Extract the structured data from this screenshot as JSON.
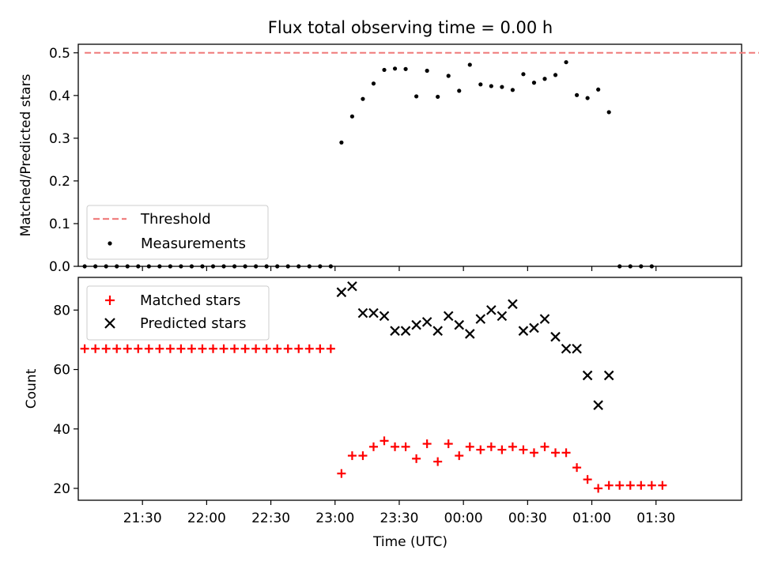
{
  "chart_data": [
    {
      "type": "scatter",
      "title": "Flux total observing time = 0.00 h",
      "xlabel": "",
      "ylabel": "Matched/Predicted stars",
      "xlim": [
        -60,
        250
      ],
      "ylim": [
        0,
        0.52
      ],
      "yticks": [
        0.0,
        0.1,
        0.2,
        0.3,
        0.4,
        0.5
      ],
      "ytick_labels": [
        "0.0",
        "0.1",
        "0.2",
        "0.3",
        "0.4",
        "0.5"
      ],
      "legend": {
        "position": "lower-left",
        "entries": [
          "Threshold",
          "Measurements"
        ]
      },
      "threshold": {
        "name": "Threshold",
        "y": 0.5,
        "x_range": [
          -57,
          268
        ],
        "color": "#f08080"
      },
      "series": [
        {
          "name": "Measurements",
          "color": "#000000",
          "marker": "dot",
          "points": [
            [
              -57,
              0
            ],
            [
              -52,
              0
            ],
            [
              -47,
              0
            ],
            [
              -42,
              0
            ],
            [
              -37,
              0
            ],
            [
              -32,
              0
            ],
            [
              -27,
              0
            ],
            [
              -22,
              0
            ],
            [
              -17,
              0
            ],
            [
              -12,
              0
            ],
            [
              -7,
              0
            ],
            [
              -2,
              0
            ],
            [
              3,
              0
            ],
            [
              8,
              0
            ],
            [
              13,
              0
            ],
            [
              18,
              0
            ],
            [
              23,
              0
            ],
            [
              28,
              0
            ],
            [
              33,
              0
            ],
            [
              38,
              0
            ],
            [
              43,
              0
            ],
            [
              48,
              0
            ],
            [
              53,
              0
            ],
            [
              58,
              0
            ],
            [
              63,
              0.29
            ],
            [
              68,
              0.351
            ],
            [
              73,
              0.392
            ],
            [
              78,
              0.428
            ],
            [
              83,
              0.46
            ],
            [
              88,
              0.463
            ],
            [
              93,
              0.462
            ],
            [
              98,
              0.398
            ],
            [
              103,
              0.458
            ],
            [
              108,
              0.397
            ],
            [
              113,
              0.446
            ],
            [
              118,
              0.411
            ],
            [
              123,
              0.472
            ],
            [
              128,
              0.426
            ],
            [
              133,
              0.422
            ],
            [
              138,
              0.42
            ],
            [
              143,
              0.413
            ],
            [
              148,
              0.45
            ],
            [
              153,
              0.43
            ],
            [
              158,
              0.439
            ],
            [
              163,
              0.448
            ],
            [
              168,
              0.478
            ],
            [
              173,
              0.401
            ],
            [
              178,
              0.394
            ],
            [
              183,
              0.414
            ],
            [
              188,
              0.361
            ],
            [
              193,
              0
            ],
            [
              198,
              0
            ],
            [
              203,
              0
            ],
            [
              208,
              0
            ]
          ]
        }
      ]
    },
    {
      "type": "scatter",
      "title": "",
      "xlabel": "Time (UTC)",
      "ylabel": "Count",
      "xlim": [
        -60,
        250
      ],
      "ylim": [
        16,
        91
      ],
      "yticks": [
        20,
        40,
        60,
        80
      ],
      "ytick_labels": [
        "20",
        "40",
        "60",
        "80"
      ],
      "xticks": [
        -30,
        0,
        30,
        60,
        90,
        120,
        150,
        180,
        210
      ],
      "xtick_labels": [
        "21:30",
        "22:00",
        "22:30",
        "23:00",
        "23:30",
        "00:00",
        "00:30",
        "01:00",
        "01:30"
      ],
      "legend": {
        "position": "top-left",
        "entries": [
          "Matched stars",
          "Predicted stars"
        ]
      },
      "series": [
        {
          "name": "Matched stars",
          "color": "#ff0000",
          "marker": "plus",
          "points": [
            [
              -57,
              67
            ],
            [
              -52,
              67
            ],
            [
              -47,
              67
            ],
            [
              -42,
              67
            ],
            [
              -37,
              67
            ],
            [
              -32,
              67
            ],
            [
              -27,
              67
            ],
            [
              -22,
              67
            ],
            [
              -17,
              67
            ],
            [
              -12,
              67
            ],
            [
              -7,
              67
            ],
            [
              -2,
              67
            ],
            [
              3,
              67
            ],
            [
              8,
              67
            ],
            [
              13,
              67
            ],
            [
              18,
              67
            ],
            [
              23,
              67
            ],
            [
              28,
              67
            ],
            [
              33,
              67
            ],
            [
              38,
              67
            ],
            [
              43,
              67
            ],
            [
              48,
              67
            ],
            [
              53,
              67
            ],
            [
              58,
              67
            ],
            [
              63,
              25
            ],
            [
              68,
              31
            ],
            [
              73,
              31
            ],
            [
              78,
              34
            ],
            [
              83,
              36
            ],
            [
              88,
              34
            ],
            [
              93,
              34
            ],
            [
              98,
              30
            ],
            [
              103,
              35
            ],
            [
              108,
              29
            ],
            [
              113,
              35
            ],
            [
              118,
              31
            ],
            [
              123,
              34
            ],
            [
              128,
              33
            ],
            [
              133,
              34
            ],
            [
              138,
              33
            ],
            [
              143,
              34
            ],
            [
              148,
              33
            ],
            [
              153,
              32
            ],
            [
              158,
              34
            ],
            [
              163,
              32
            ],
            [
              168,
              32
            ],
            [
              173,
              27
            ],
            [
              178,
              23
            ],
            [
              183,
              20
            ],
            [
              188,
              21
            ],
            [
              193,
              21
            ],
            [
              198,
              21
            ],
            [
              203,
              21
            ],
            [
              208,
              21
            ],
            [
              213,
              21
            ]
          ]
        },
        {
          "name": "Predicted stars",
          "color": "#000000",
          "marker": "x",
          "points": [
            [
              63,
              86
            ],
            [
              68,
              88
            ],
            [
              73,
              79
            ],
            [
              78,
              79
            ],
            [
              83,
              78
            ],
            [
              88,
              73
            ],
            [
              93,
              73
            ],
            [
              98,
              75
            ],
            [
              103,
              76
            ],
            [
              108,
              73
            ],
            [
              113,
              78
            ],
            [
              118,
              75
            ],
            [
              123,
              72
            ],
            [
              128,
              77
            ],
            [
              133,
              80
            ],
            [
              138,
              78
            ],
            [
              143,
              82
            ],
            [
              148,
              73
            ],
            [
              153,
              74
            ],
            [
              158,
              77
            ],
            [
              163,
              71
            ],
            [
              168,
              67
            ],
            [
              173,
              67
            ],
            [
              178,
              58
            ],
            [
              183,
              48
            ],
            [
              188,
              58
            ]
          ]
        }
      ]
    }
  ]
}
